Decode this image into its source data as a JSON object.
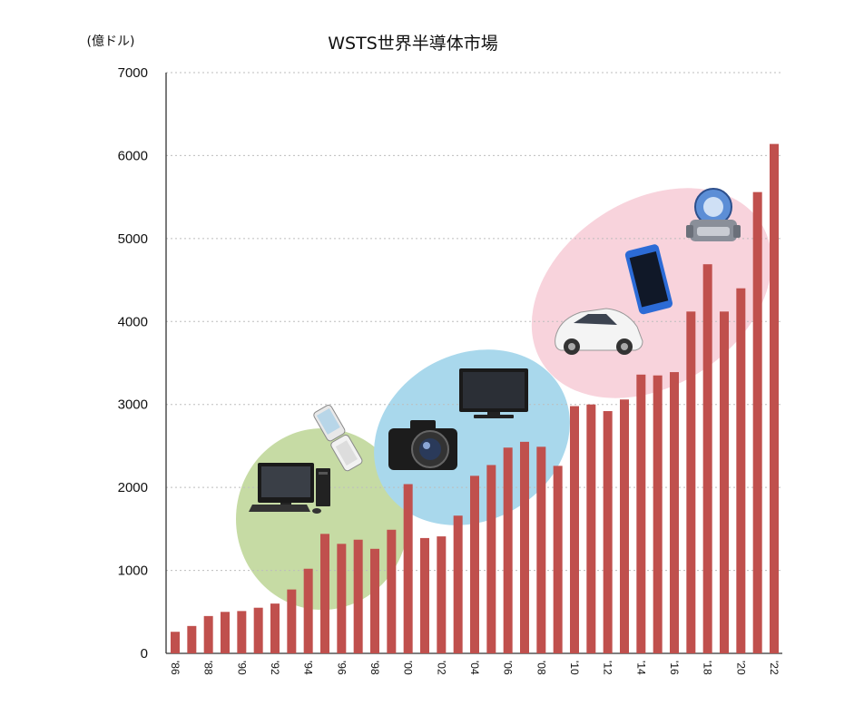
{
  "chart_data": {
    "type": "bar",
    "title": "WSTS世界半導体市場",
    "unit_label": "(億ドル)",
    "ylim": [
      0,
      7000
    ],
    "y_ticks": [
      "0",
      "1000",
      "2000",
      "3000",
      "4000",
      "5000",
      "6000",
      "7000"
    ],
    "grid": true,
    "categories": [
      "'86",
      "'87",
      "'88",
      "'89",
      "'90",
      "'91",
      "'92",
      "'93",
      "'94",
      "'95",
      "'96",
      "'97",
      "'98",
      "'99",
      "'00",
      "'01",
      "'02",
      "'03",
      "'04",
      "'05",
      "'06",
      "'07",
      "'08",
      "'09",
      "'10",
      "'11",
      "'12",
      "'13",
      "'14",
      "'15",
      "'16",
      "'17",
      "'18",
      "'19",
      "'20",
      "'21",
      "'22"
    ],
    "x_tick_labels": [
      "'86",
      "'88",
      "'90",
      "'92",
      "'94",
      "'96",
      "'98",
      "'00",
      "'02",
      "'04",
      "'06",
      "'08",
      "'10",
      "'12",
      "'14",
      "'16",
      "'18",
      "'20",
      "'22"
    ],
    "values": [
      260,
      330,
      450,
      500,
      510,
      550,
      600,
      770,
      1020,
      1440,
      1320,
      1370,
      1260,
      1490,
      2040,
      1390,
      1410,
      1660,
      2140,
      2270,
      2480,
      2550,
      2490,
      2260,
      2980,
      3000,
      2920,
      3060,
      3360,
      3350,
      3390,
      4120,
      4690,
      4120,
      4400,
      5560,
      6140
    ],
    "bar_color": "#c0504d",
    "eras": [
      {
        "color": "#c6dba4",
        "icons": [
          "desktop-pc-icon",
          "flip-phone-icon"
        ]
      },
      {
        "color": "#a9d8ec",
        "icons": [
          "camera-icon",
          "flat-tv-icon"
        ]
      },
      {
        "color": "#f8d3dc",
        "icons": [
          "car-icon",
          "smartphone-icon",
          "robot-icon"
        ]
      }
    ]
  }
}
